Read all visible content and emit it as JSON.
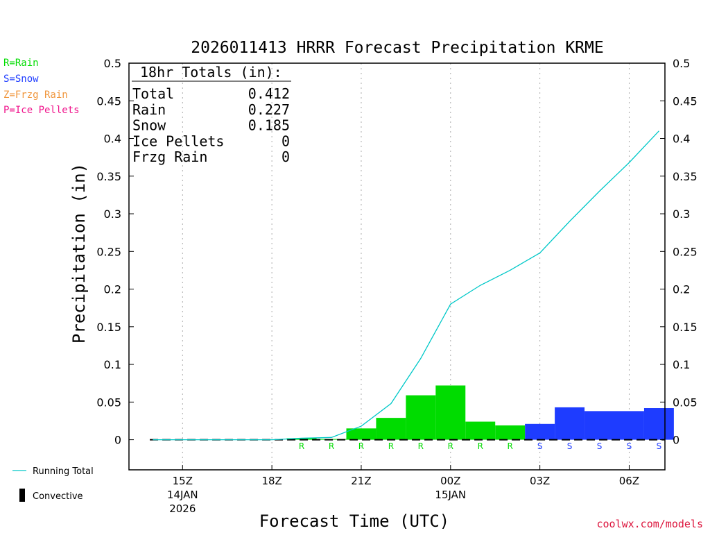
{
  "colors": {
    "rain": "#00dc00",
    "snow": "#1e3cff",
    "frzg_rain": "#f0963c",
    "ice_pellets": "#f0148c",
    "running_total": "#00c8c8",
    "credit": "#dc143c"
  },
  "legend": {
    "rain": "R=Rain",
    "snow": "S=Snow",
    "frzg_rain": "Z=Frzg Rain",
    "ice_pellets": "P=Ice Pellets",
    "running_total": "Running Total",
    "convective": "Convective"
  },
  "totals": {
    "header": "18hr Totals (in):",
    "rows": [
      {
        "label": "Total",
        "value": "0.412"
      },
      {
        "label": "Rain",
        "value": "0.227"
      },
      {
        "label": "Snow",
        "value": "0.185"
      },
      {
        "label": "Ice Pellets",
        "value": "0"
      },
      {
        "label": "Frzg Rain",
        "value": "0"
      }
    ]
  },
  "credit": "coolwx.com/models",
  "chart_data": {
    "type": "bar",
    "title": "2026011413 HRRR Forecast Precipitation KRME",
    "xlabel": "Forecast Time (UTC)",
    "ylabel": "Precipitation (in)",
    "ylim": [
      -0.04,
      0.5
    ],
    "y_ticks": [
      0,
      0.05,
      0.1,
      0.15,
      0.2,
      0.25,
      0.3,
      0.35,
      0.4,
      0.45,
      0.5
    ],
    "y_tick_labels": [
      "0",
      "0.05",
      "0.1",
      "0.15",
      "0.2",
      "0.25",
      "0.3",
      "0.35",
      "0.4",
      "0.45",
      "0.5"
    ],
    "x_range_hours_utc": [
      13.2,
      31.2
    ],
    "x_ticks": [
      {
        "hour": 15,
        "label": "15Z",
        "date": "14JAN",
        "year": "2026"
      },
      {
        "hour": 18,
        "label": "18Z",
        "date": "",
        "year": ""
      },
      {
        "hour": 21,
        "label": "21Z",
        "date": "",
        "year": ""
      },
      {
        "hour": 24,
        "label": "00Z",
        "date": "15JAN",
        "year": ""
      },
      {
        "hour": 27,
        "label": "03Z",
        "date": "",
        "year": ""
      },
      {
        "hour": 30,
        "label": "06Z",
        "date": "",
        "year": ""
      }
    ],
    "hours": [
      14,
      15,
      16,
      17,
      18,
      19,
      20,
      21,
      22,
      23,
      24,
      25,
      26,
      27,
      28,
      29,
      30,
      31
    ],
    "hourly_precip": [
      0,
      0,
      0,
      0,
      0,
      0.002,
      0.001,
      0.015,
      0.029,
      0.059,
      0.072,
      0.024,
      0.019,
      0.021,
      0.043,
      0.038,
      0.038,
      0.042
    ],
    "precip_type": [
      "",
      "",
      "",
      "",
      "",
      "R",
      "R",
      "R",
      "R",
      "R",
      "R",
      "R",
      "R",
      "S",
      "S",
      "S",
      "S",
      "S"
    ],
    "running_total_hours": [
      14,
      15,
      16,
      17,
      18,
      19,
      20,
      21,
      22,
      23,
      24,
      25,
      26,
      27,
      28,
      29,
      30,
      31
    ],
    "running_total": [
      0,
      0,
      0,
      0,
      0,
      0.002,
      0.003,
      0.018,
      0.048,
      0.108,
      0.18,
      0.205,
      0.225,
      0.248,
      0.29,
      0.33,
      0.368,
      0.41
    ]
  }
}
